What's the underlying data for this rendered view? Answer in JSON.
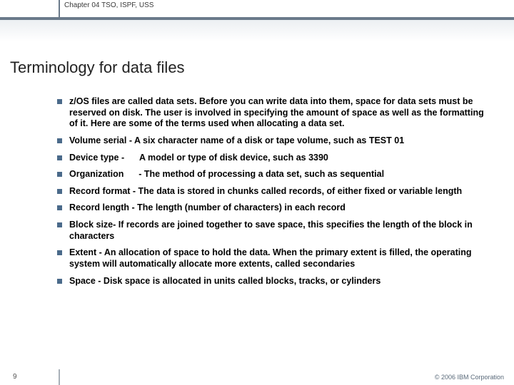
{
  "header": {
    "chapter": "Chapter 04 TSO, ISPF, USS"
  },
  "title": "Terminology for data files",
  "bullets": [
    "z/OS files are called data sets. Before you can write data into them, space for data sets must be reserved on disk. The user is involved in specifying the amount of space as well as the formatting of it. Here are some of the terms used when allocating a data set.",
    "Volume serial - A six character name of a disk or tape volume, such as TEST 01",
    "Device type -      A model or type of disk device, such as 3390",
    "Organization      - The method of processing a data set, such as sequential",
    "Record format - The data is stored in chunks called records, of either fixed or variable length",
    "Record length - The length (number of characters) in each record",
    "Block size- If records are joined together to save space, this specifies the length of the block in characters",
    "Extent - An allocation of space to hold the data. When the primary extent is filled, the operating system will automatically allocate more extents, called secondaries",
    "Space - Disk space is allocated in units called blocks, tracks, or cylinders"
  ],
  "footer": {
    "page": "9",
    "copyright": "© 2006 IBM Corporation"
  },
  "colors": {
    "bullet_square": "#4a6a8a",
    "header_divider": "#6a7a8a"
  }
}
